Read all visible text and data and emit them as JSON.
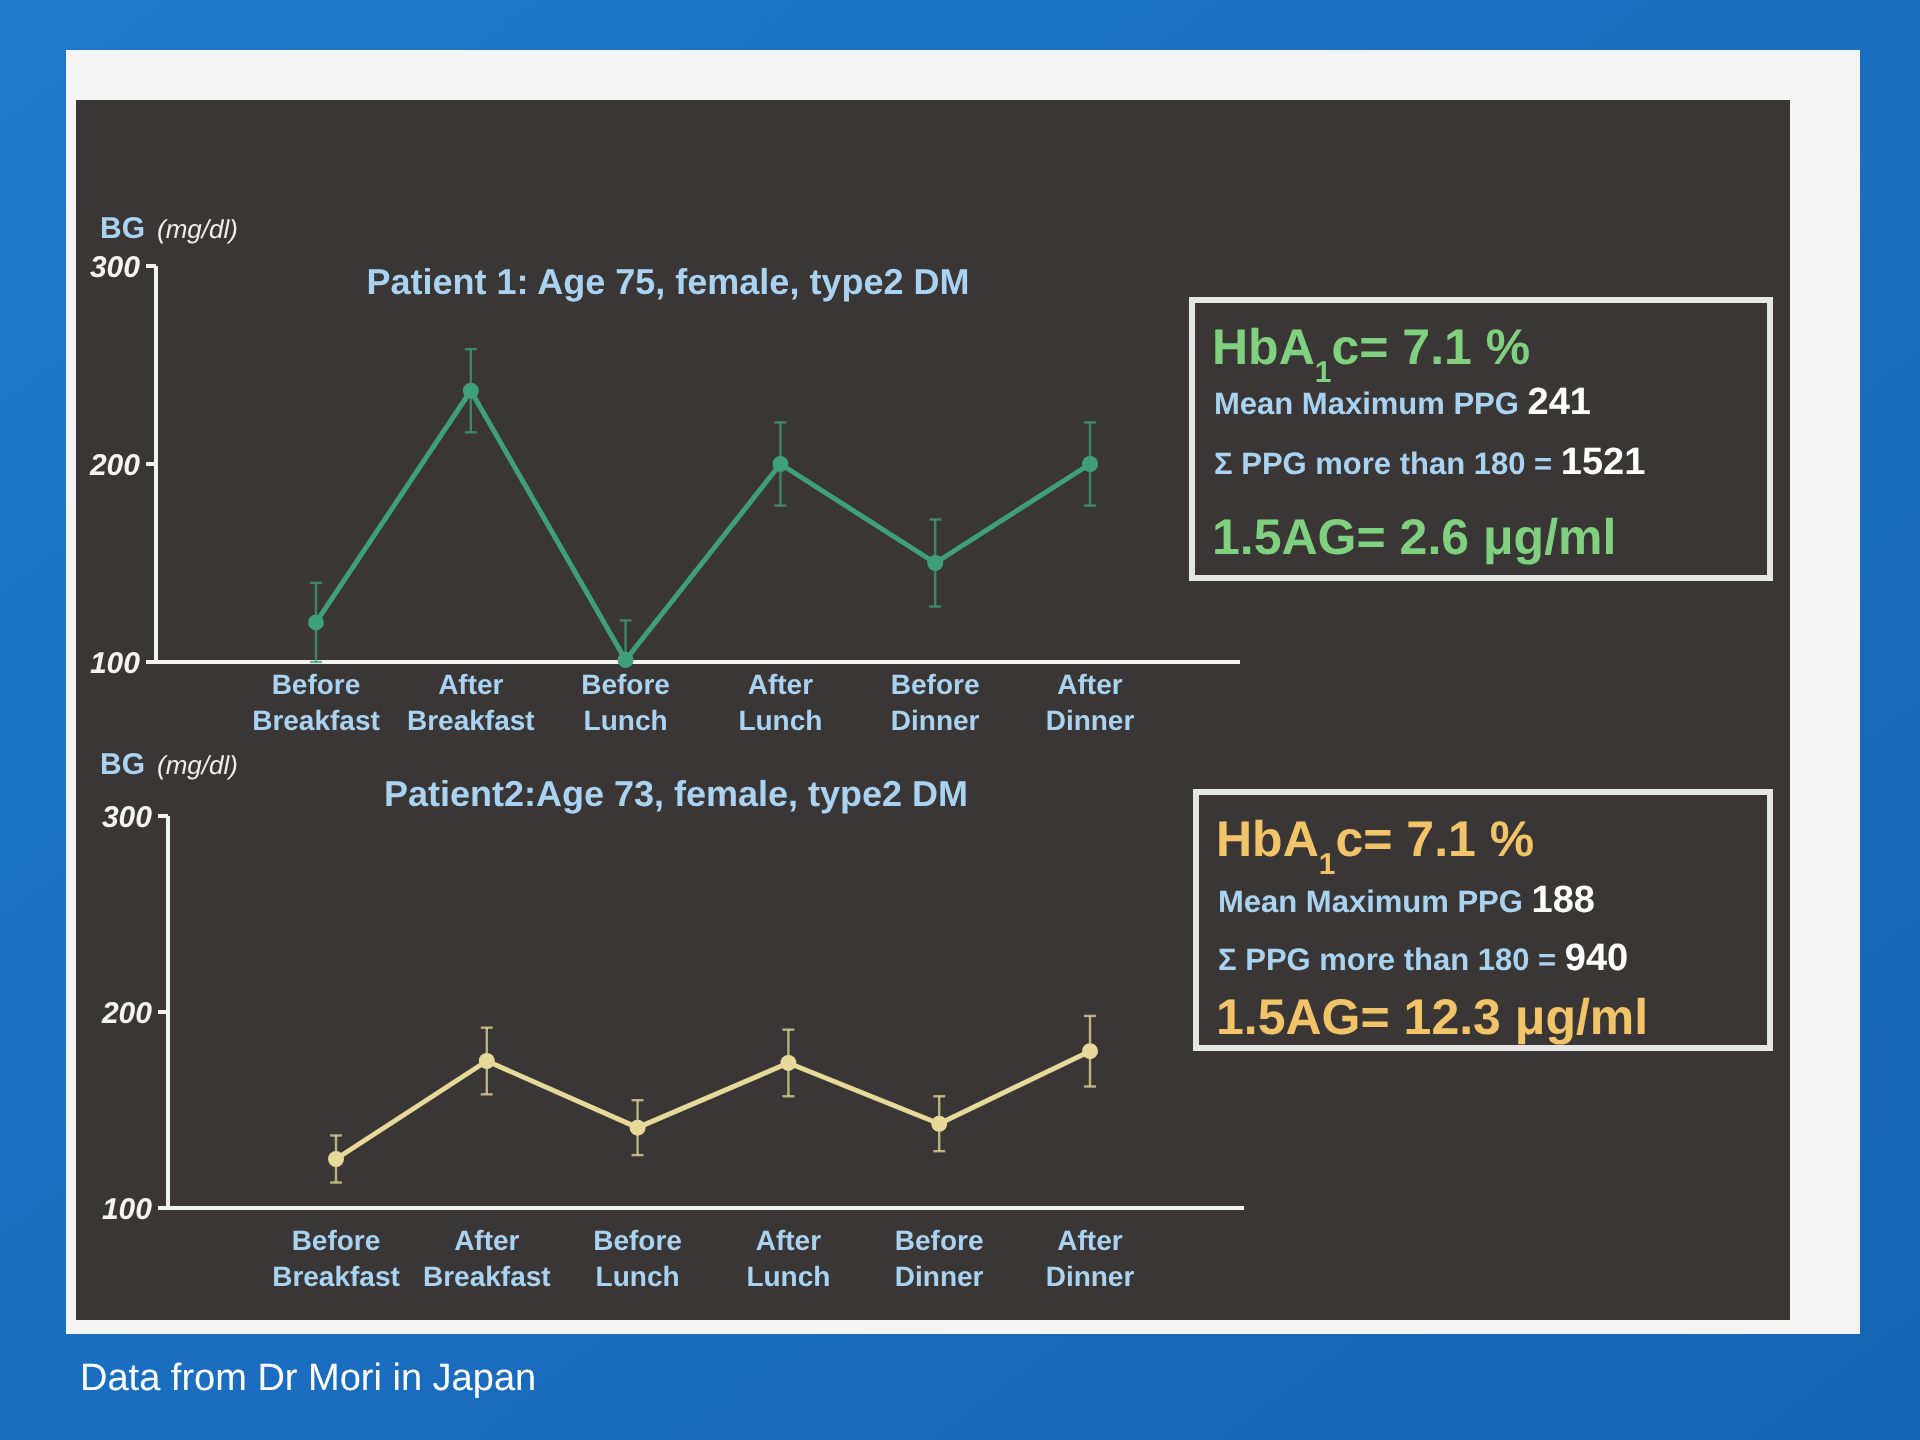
{
  "chart_data": [
    {
      "type": "line",
      "title": "Patient 1: Age 75, female, type2 DM",
      "ylabel": "BG (mg/dl)",
      "categories": [
        "Before Breakfast",
        "After Breakfast",
        "Before Lunch",
        "After Lunch",
        "Before Dinner",
        "After Dinner"
      ],
      "series": [
        {
          "color": "#3f9f7a",
          "values": [
            120,
            237,
            101,
            200,
            150,
            200
          ],
          "errors": [
            20,
            21,
            [
              100,
              121
            ],
            21,
            22,
            21
          ]
        }
      ],
      "ylim": [
        100,
        300
      ],
      "yticks": [
        100,
        200,
        300
      ],
      "marker": "circle"
    },
    {
      "type": "other",
      "color": "#7fd07f",
      "annotations": [
        "HbA$_{1}$c= 7.1 %",
        "Mean Maximum PPG 241",
        "Σ PPG more than 180 = 1521",
        "1.5AG= 2.6 μg/ml"
      ]
    },
    {
      "type": "line",
      "title": "Patient2:Age 73, female, type2 DM",
      "ylabel": "BG (mg/dl)",
      "categories": [
        "Before Breakfast",
        "After Breakfast",
        "Before Lunch",
        "After Lunch",
        "Before Dinner",
        "After Dinner"
      ],
      "series": [
        {
          "color": "#e6d99a",
          "values": [
            125,
            175,
            141,
            174,
            143,
            180
          ],
          "errors": [
            12,
            17,
            14,
            17,
            14,
            18
          ]
        }
      ],
      "ylim": [
        100,
        300
      ],
      "yticks": [
        100,
        200,
        300
      ],
      "marker": "circle",
      "annotations": [
        "Data from Dr Mori in Japan"
      ]
    },
    {
      "type": "other",
      "color": "#f2c46a",
      "annotations": [
        "HbA$_{1}$c= 7.1 %",
        "Mean Maximum PPG 188",
        "Σ PPG more than 180 = 940",
        "1.5AG= 12.3 μg/ml"
      ]
    }
  ]
}
